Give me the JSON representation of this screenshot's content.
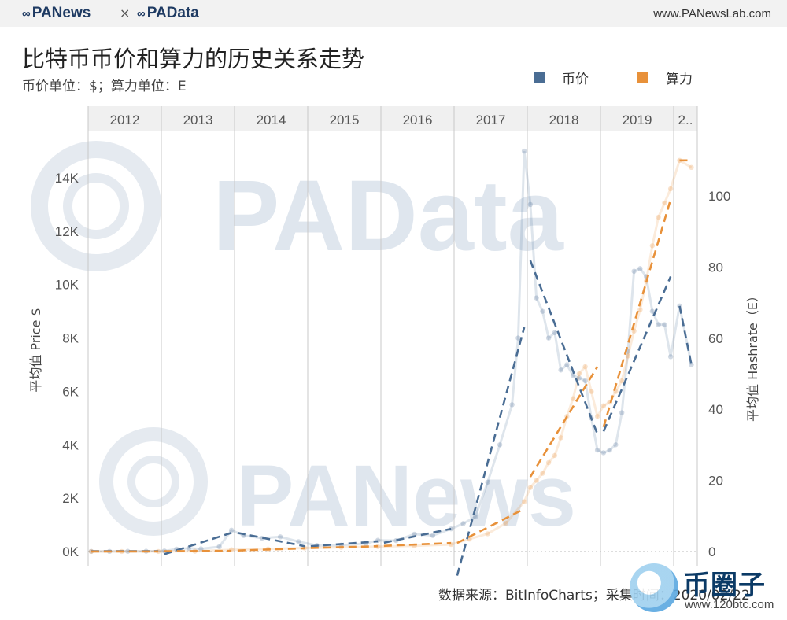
{
  "header": {
    "brand_left": "PANews",
    "brand_times": "×",
    "brand_right": "PAData",
    "site": "www.PANewsLab.com"
  },
  "title": "比特币币价和算力的历史关系走势",
  "subtitle": "币价单位：$；算力单位：E",
  "source": "数据来源：BitInfoCharts；采集时间：2020/02/22",
  "watermarks": [
    "PAData",
    "PANews"
  ],
  "badge": {
    "name": "币圈子",
    "url": "www.120btc.com"
  },
  "colors": {
    "price": "#4a6d94",
    "hashrate": "#e8913a",
    "grid": "#c8c8c8",
    "header_bg": "#f0f0f0"
  },
  "chart_data": {
    "type": "line",
    "years": [
      "2012",
      "2013",
      "2014",
      "2015",
      "2016",
      "2017",
      "2018",
      "2019",
      "2.."
    ],
    "y_left": {
      "label": "平均值 Price $",
      "ticks": [
        "0K",
        "2K",
        "4K",
        "6K",
        "8K",
        "10K",
        "12K",
        "14K"
      ],
      "range": [
        0,
        15000
      ]
    },
    "y_right": {
      "label": "平均值 Hashrate（E）",
      "ticks": [
        "0",
        "20",
        "40",
        "60",
        "80",
        "100"
      ],
      "range": [
        0,
        110
      ]
    },
    "series": [
      {
        "name": "币价",
        "axis": "left",
        "values": [
          [
            "2012-01",
            6
          ],
          [
            "2012-04",
            5
          ],
          [
            "2012-07",
            8
          ],
          [
            "2012-10",
            12
          ],
          [
            "2013-01",
            20
          ],
          [
            "2013-03",
            90
          ],
          [
            "2013-05",
            120
          ],
          [
            "2013-07",
            100
          ],
          [
            "2013-10",
            180
          ],
          [
            "2013-12",
            800
          ],
          [
            "2014-02",
            600
          ],
          [
            "2014-05",
            500
          ],
          [
            "2014-08",
            550
          ],
          [
            "2014-11",
            370
          ],
          [
            "2015-02",
            230
          ],
          [
            "2015-06",
            240
          ],
          [
            "2015-10",
            300
          ],
          [
            "2015-12",
            420
          ],
          [
            "2016-03",
            410
          ],
          [
            "2016-06",
            650
          ],
          [
            "2016-09",
            600
          ],
          [
            "2016-12",
            850
          ],
          [
            "2017-02",
            1050
          ],
          [
            "2017-04",
            1300
          ],
          [
            "2017-06",
            2600
          ],
          [
            "2017-08",
            4000
          ],
          [
            "2017-10",
            5500
          ],
          [
            "2017-11",
            8000
          ],
          [
            "2017-12",
            15000
          ],
          [
            "2018-01",
            13000
          ],
          [
            "2018-02",
            9500
          ],
          [
            "2018-03",
            9000
          ],
          [
            "2018-04",
            8000
          ],
          [
            "2018-05",
            8200
          ],
          [
            "2018-06",
            6800
          ],
          [
            "2018-07",
            7000
          ],
          [
            "2018-08",
            6600
          ],
          [
            "2018-09",
            6500
          ],
          [
            "2018-10",
            6400
          ],
          [
            "2018-11",
            5000
          ],
          [
            "2018-12",
            3800
          ],
          [
            "2019-01",
            3700
          ],
          [
            "2019-02",
            3800
          ],
          [
            "2019-03",
            4000
          ],
          [
            "2019-04",
            5200
          ],
          [
            "2019-05",
            7500
          ],
          [
            "2019-06",
            10500
          ],
          [
            "2019-07",
            10600
          ],
          [
            "2019-08",
            10300
          ],
          [
            "2019-09",
            9000
          ],
          [
            "2019-10",
            8500
          ],
          [
            "2019-11",
            8500
          ],
          [
            "2019-12",
            7300
          ],
          [
            "2020-01",
            9200
          ],
          [
            "2020-02",
            7000
          ]
        ],
        "trend_segments": [
          {
            "x": [
              "2012-01",
              "2012-12"
            ],
            "y": [
              15,
              15
            ]
          },
          {
            "x": [
              "2013-01",
              "2013-12"
            ],
            "y": [
              -100,
              700
            ]
          },
          {
            "x": [
              "2014-01",
              "2014-12"
            ],
            "y": [
              700,
              200
            ]
          },
          {
            "x": [
              "2015-01",
              "2015-12"
            ],
            "y": [
              200,
              380
            ]
          },
          {
            "x": [
              "2016-01",
              "2016-12"
            ],
            "y": [
              330,
              850
            ]
          },
          {
            "x": [
              "2017-01",
              "2017-12"
            ],
            "y": [
              -900,
              8400
            ]
          },
          {
            "x": [
              "2018-01",
              "2018-12"
            ],
            "y": [
              10900,
              4400
            ]
          },
          {
            "x": [
              "2019-01",
              "2019-12"
            ],
            "y": [
              4500,
              10300
            ]
          },
          {
            "x": [
              "2020-01",
              "2020-02"
            ],
            "y": [
              9200,
              7000
            ]
          }
        ]
      },
      {
        "name": "算力",
        "axis": "right",
        "values": [
          [
            "2012-01",
            0.01
          ],
          [
            "2012-06",
            0.015
          ],
          [
            "2012-12",
            0.02
          ],
          [
            "2013-06",
            0.08
          ],
          [
            "2013-12",
            0.5
          ],
          [
            "2014-06",
            0.7
          ],
          [
            "2014-12",
            1.0
          ],
          [
            "2015-06",
            1.2
          ],
          [
            "2015-12",
            1.4
          ],
          [
            "2016-06",
            1.6
          ],
          [
            "2016-12",
            2.0
          ],
          [
            "2017-03",
            3.5
          ],
          [
            "2017-06",
            5
          ],
          [
            "2017-09",
            8
          ],
          [
            "2017-12",
            14
          ],
          [
            "2018-01",
            18
          ],
          [
            "2018-02",
            20
          ],
          [
            "2018-03",
            22
          ],
          [
            "2018-04",
            25
          ],
          [
            "2018-05",
            27
          ],
          [
            "2018-06",
            32
          ],
          [
            "2018-07",
            38
          ],
          [
            "2018-08",
            43
          ],
          [
            "2018-09",
            50
          ],
          [
            "2018-10",
            52
          ],
          [
            "2018-11",
            45
          ],
          [
            "2018-12",
            38
          ],
          [
            "2019-01",
            41
          ],
          [
            "2019-02",
            42
          ],
          [
            "2019-03",
            45
          ],
          [
            "2019-04",
            48
          ],
          [
            "2019-05",
            55
          ],
          [
            "2019-06",
            62
          ],
          [
            "2019-07",
            68
          ],
          [
            "2019-08",
            76
          ],
          [
            "2019-09",
            86
          ],
          [
            "2019-10",
            94
          ],
          [
            "2019-11",
            98
          ],
          [
            "2019-12",
            102
          ],
          [
            "2020-01",
            110
          ],
          [
            "2020-02",
            108
          ]
        ],
        "trend_segments": [
          {
            "x": [
              "2012-01",
              "2012-12"
            ],
            "y": [
              0.02,
              0.02
            ]
          },
          {
            "x": [
              "2013-01",
              "2013-12"
            ],
            "y": [
              0.1,
              0.2
            ]
          },
          {
            "x": [
              "2014-01",
              "2014-12"
            ],
            "y": [
              0.3,
              0.9
            ]
          },
          {
            "x": [
              "2015-01",
              "2015-12"
            ],
            "y": [
              1.0,
              1.5
            ]
          },
          {
            "x": [
              "2016-01",
              "2016-12"
            ],
            "y": [
              1.6,
              2.4
            ]
          },
          {
            "x": [
              "2017-01",
              "2017-12"
            ],
            "y": [
              2.4,
              12
            ]
          },
          {
            "x": [
              "2018-01",
              "2018-12"
            ],
            "y": [
              21,
              52
            ]
          },
          {
            "x": [
              "2019-01",
              "2019-12"
            ],
            "y": [
              35,
              99
            ]
          },
          {
            "x": [
              "2020-01",
              "2020-02"
            ],
            "y": [
              110,
              110
            ]
          }
        ]
      }
    ],
    "legend_position": "top-right",
    "grid": "vertical year dividers, dotted zero line"
  }
}
